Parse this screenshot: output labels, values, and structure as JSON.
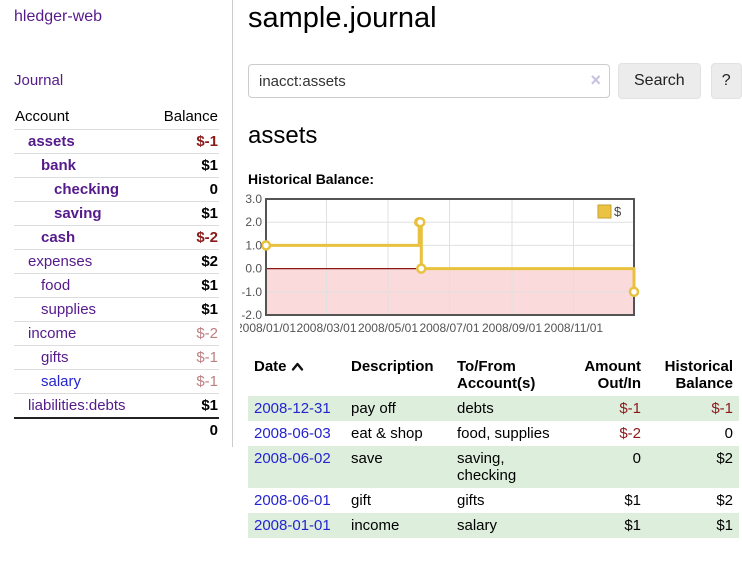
{
  "sidebar": {
    "brand": "hledger-web",
    "nav": [
      {
        "label": "Journal"
      }
    ],
    "accounts_table": {
      "col_account": "Account",
      "col_balance": "Balance",
      "rows": [
        {
          "label": "assets",
          "indent": 1,
          "bold": true,
          "balance": "$-1"
        },
        {
          "label": "bank",
          "indent": 2,
          "bold": true,
          "balance": "$1"
        },
        {
          "label": "checking",
          "indent": 3,
          "bold": true,
          "balance": "0"
        },
        {
          "label": "saving",
          "indent": 3,
          "bold": true,
          "balance": "$1"
        },
        {
          "label": "cash",
          "indent": 2,
          "bold": true,
          "balance": "$-2"
        },
        {
          "label": "expenses",
          "indent": 1,
          "bold": false,
          "balance": "$2"
        },
        {
          "label": "food",
          "indent": 2,
          "bold": false,
          "balance": "$1"
        },
        {
          "label": "supplies",
          "indent": 2,
          "bold": false,
          "balance": "$1"
        },
        {
          "label": "income",
          "indent": 1,
          "bold": false,
          "balance": "$-2"
        },
        {
          "label": "gifts",
          "indent": 2,
          "bold": false,
          "balance": "$-1"
        },
        {
          "label": "salary",
          "indent": 2,
          "bold": false,
          "balance": "$-1",
          "unvisited": true
        },
        {
          "label": "liabilities:debts",
          "indent": 1,
          "bold": false,
          "balance": "$1"
        }
      ],
      "total": "0"
    }
  },
  "main": {
    "title": "sample.journal",
    "search": {
      "value": "inacct:assets",
      "clear_icon": "×",
      "button": "Search",
      "help": "?"
    },
    "account_heading": "assets",
    "chart_label": "Historical Balance:",
    "table": {
      "headers": [
        "Date",
        "Description",
        "To/From\nAccount(s)",
        "Amount\nOut/In",
        "Historical\nBalance"
      ],
      "rows": [
        {
          "date": "2008-12-31",
          "description": "pay off",
          "accounts": "debts",
          "amount": "$-1",
          "balance": "$-1"
        },
        {
          "date": "2008-06-03",
          "description": "eat & shop",
          "accounts": "food, supplies",
          "amount": "$-2",
          "balance": "0"
        },
        {
          "date": "2008-06-02",
          "description": "save",
          "accounts": "saving,\nchecking",
          "amount": "0",
          "balance": "$2"
        },
        {
          "date": "2008-06-01",
          "description": "gift",
          "accounts": "gifts",
          "amount": "$1",
          "balance": "$2"
        },
        {
          "date": "2008-01-01",
          "description": "income",
          "accounts": "salary",
          "amount": "$1",
          "balance": "$1"
        }
      ]
    }
  },
  "chart_data": {
    "type": "line",
    "title": "Historical Balance",
    "step": true,
    "series": [
      {
        "name": "$",
        "points": [
          [
            "2008-01-01",
            1
          ],
          [
            "2008-06-01",
            2
          ],
          [
            "2008-06-02",
            2
          ],
          [
            "2008-06-03",
            0
          ],
          [
            "2008-12-31",
            -1
          ]
        ]
      }
    ],
    "xrange": [
      "2008-01-01",
      "2008-12-31"
    ],
    "ylim": [
      -2,
      3
    ],
    "yticks": [
      3.0,
      2.0,
      1.0,
      0.0,
      -1.0,
      -2.0
    ],
    "xtick_labels": [
      "2008/01/01",
      "2008/03/01",
      "2008/05/01",
      "2008/07/01",
      "2008/09/01",
      "2008/11/01"
    ],
    "legend_position": "top-right",
    "grid": true,
    "colors": {
      "line": "#e8c23e",
      "marker_fill": "#ffffff",
      "negative_region": "#fadada",
      "zero_line": "#8c1616",
      "border": "#545454",
      "gridline": "#e0e0e0",
      "tick_text": "#545454",
      "legend_swatch": "#e9c341",
      "legend_swatch_border": "#c7a232"
    }
  }
}
